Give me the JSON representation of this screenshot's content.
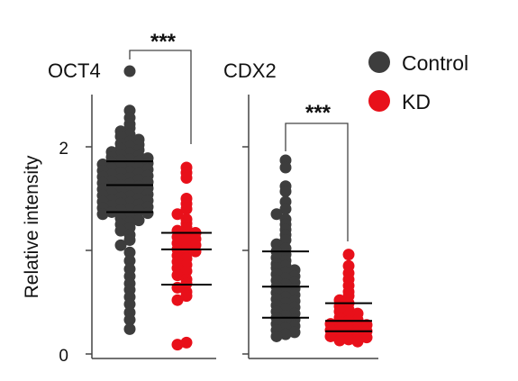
{
  "chart_data": [
    {
      "type": "scatter",
      "title": "OCT4",
      "ylabel": "Relative intensity",
      "ylim": [
        0,
        2.7
      ],
      "yticks": [
        0,
        1,
        2
      ],
      "ytick_labels": [
        "0",
        "",
        "2"
      ],
      "categories": [
        "Control",
        "KD"
      ],
      "significance": "***",
      "series": [
        {
          "name": "Control",
          "color": "#3d3d3d",
          "summary": {
            "q1": 1.37,
            "median": 1.63,
            "q3": 1.86
          },
          "values": [
            2.73,
            2.35,
            2.28,
            2.22,
            2.18,
            2.15,
            2.12,
            2.1,
            2.07,
            2.05,
            2.03,
            2.02,
            2.0,
            1.98,
            1.97,
            1.95,
            1.94,
            1.92,
            1.91,
            1.9,
            1.89,
            1.88,
            1.87,
            1.86,
            1.85,
            1.84,
            1.83,
            1.82,
            1.81,
            1.8,
            1.79,
            1.78,
            1.77,
            1.76,
            1.75,
            1.74,
            1.73,
            1.72,
            1.71,
            1.7,
            1.69,
            1.68,
            1.67,
            1.66,
            1.65,
            1.64,
            1.63,
            1.62,
            1.61,
            1.6,
            1.59,
            1.58,
            1.57,
            1.56,
            1.55,
            1.54,
            1.53,
            1.52,
            1.51,
            1.5,
            1.49,
            1.48,
            1.47,
            1.46,
            1.45,
            1.44,
            1.43,
            1.42,
            1.41,
            1.4,
            1.39,
            1.38,
            1.37,
            1.36,
            1.35,
            1.33,
            1.31,
            1.29,
            1.27,
            1.25,
            1.22,
            1.19,
            1.15,
            1.1,
            1.05,
            0.98,
            0.9,
            0.82,
            0.75,
            0.68,
            0.62,
            0.55,
            0.48,
            0.4,
            0.33,
            0.24
          ]
        },
        {
          "name": "KD",
          "color": "#e8101a",
          "summary": {
            "q1": 0.67,
            "median": 1.01,
            "q3": 1.17
          },
          "values": [
            1.8,
            1.75,
            1.7,
            1.5,
            1.45,
            1.4,
            1.35,
            1.3,
            1.26,
            1.22,
            1.19,
            1.17,
            1.15,
            1.13,
            1.11,
            1.09,
            1.07,
            1.05,
            1.03,
            1.01,
            0.99,
            0.97,
            0.95,
            0.92,
            0.89,
            0.86,
            0.83,
            0.8,
            0.76,
            0.72,
            0.68,
            0.64,
            0.6,
            0.56,
            0.52,
            0.11,
            0.09
          ]
        }
      ]
    },
    {
      "type": "scatter",
      "title": "CDX2",
      "ylim": [
        0,
        2.7
      ],
      "yticks": [
        0,
        1,
        2
      ],
      "categories": [
        "Control",
        "KD"
      ],
      "significance": "***",
      "series": [
        {
          "name": "Control",
          "color": "#3d3d3d",
          "summary": {
            "q1": 0.35,
            "median": 0.65,
            "q3": 0.99
          },
          "values": [
            1.87,
            1.8,
            1.62,
            1.57,
            1.47,
            1.4,
            1.35,
            1.3,
            1.25,
            1.2,
            1.15,
            1.1,
            1.06,
            1.02,
            0.99,
            0.96,
            0.93,
            0.9,
            0.87,
            0.85,
            0.83,
            0.81,
            0.79,
            0.77,
            0.75,
            0.73,
            0.71,
            0.69,
            0.67,
            0.65,
            0.63,
            0.61,
            0.59,
            0.57,
            0.55,
            0.53,
            0.51,
            0.49,
            0.47,
            0.45,
            0.43,
            0.41,
            0.39,
            0.37,
            0.35,
            0.33,
            0.31,
            0.29,
            0.27,
            0.25,
            0.23,
            0.21,
            0.19,
            0.17
          ]
        },
        {
          "name": "KD",
          "color": "#e8101a",
          "summary": {
            "q1": 0.22,
            "median": 0.32,
            "q3": 0.49
          },
          "values": [
            0.96,
            0.85,
            0.78,
            0.72,
            0.66,
            0.6,
            0.56,
            0.52,
            0.49,
            0.46,
            0.43,
            0.41,
            0.39,
            0.37,
            0.35,
            0.33,
            0.32,
            0.31,
            0.3,
            0.29,
            0.28,
            0.27,
            0.26,
            0.25,
            0.24,
            0.23,
            0.22,
            0.21,
            0.2,
            0.19,
            0.18,
            0.17,
            0.16,
            0.15,
            0.14,
            0.13,
            0.12
          ]
        }
      ]
    }
  ],
  "legend": {
    "placement": "top-right",
    "items": [
      {
        "label": "Control",
        "color": "#3d3d3d"
      },
      {
        "label": "KD",
        "color": "#e8101a"
      }
    ]
  }
}
